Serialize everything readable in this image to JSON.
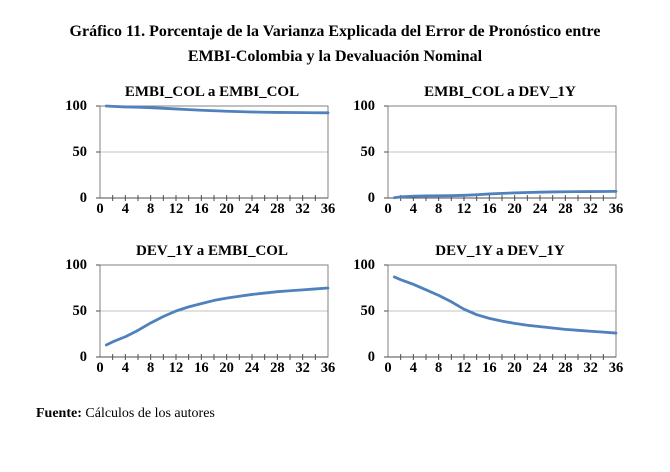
{
  "header": {
    "title_line1": "Gráfico 11. Porcentaje de la Varianza Explicada del Error de Pronóstico entre",
    "title_line2": "EMBI-Colombia y la Devaluación Nominal"
  },
  "footer": {
    "source_label": "Fuente:",
    "source_text": " Cálculos de los autores"
  },
  "colors": {
    "line": "#4f81bd",
    "plot_border": "#808080",
    "gridline": "#c3c3c3",
    "axis": "#4d4d4d",
    "text": "#000000"
  },
  "axes": {
    "x_range": [
      0,
      36
    ],
    "y_range": [
      0,
      100
    ],
    "x_ticks": [
      0,
      4,
      8,
      12,
      16,
      20,
      24,
      28,
      32,
      36
    ],
    "y_ticks": [
      100,
      50,
      0
    ],
    "x_minor_step": 2,
    "grid": "horizontal-only",
    "legend": "none"
  },
  "chart_data": [
    {
      "type": "line",
      "title": "EMBI_COL a EMBI_COL",
      "xlabel": "",
      "ylabel": "",
      "xlim": [
        0,
        36
      ],
      "ylim": [
        0,
        100
      ],
      "x": [
        1,
        2,
        4,
        6,
        8,
        10,
        12,
        14,
        16,
        18,
        20,
        22,
        24,
        26,
        28,
        30,
        32,
        34,
        36
      ],
      "values": [
        100,
        99.6,
        99.0,
        98.6,
        98.1,
        97.5,
        96.8,
        96.1,
        95.4,
        94.8,
        94.3,
        93.9,
        93.5,
        93.2,
        93.0,
        92.9,
        92.8,
        92.7,
        92.6
      ]
    },
    {
      "type": "line",
      "title": "EMBI_COL a DEV_1Y",
      "xlabel": "",
      "ylabel": "",
      "xlim": [
        0,
        36
      ],
      "ylim": [
        0,
        100
      ],
      "x": [
        1,
        2,
        4,
        6,
        8,
        10,
        12,
        14,
        16,
        18,
        20,
        22,
        24,
        26,
        28,
        30,
        32,
        34,
        36
      ],
      "values": [
        0.3,
        1.2,
        2.0,
        2.3,
        2.4,
        2.5,
        2.9,
        3.5,
        4.4,
        5.0,
        5.6,
        6.0,
        6.3,
        6.6,
        6.8,
        6.9,
        7.0,
        7.1,
        7.2
      ]
    },
    {
      "type": "line",
      "title": "DEV_1Y a EMBI_COL",
      "xlabel": "",
      "ylabel": "",
      "xlim": [
        0,
        36
      ],
      "ylim": [
        0,
        100
      ],
      "x": [
        1,
        2,
        4,
        6,
        8,
        10,
        12,
        14,
        16,
        18,
        20,
        22,
        24,
        26,
        28,
        30,
        32,
        34,
        36
      ],
      "values": [
        13,
        16.5,
        22,
        29,
        37,
        44,
        50,
        54.5,
        58,
        61.5,
        64,
        66,
        68,
        69.5,
        71,
        72,
        73,
        74,
        75
      ]
    },
    {
      "type": "line",
      "title": "DEV_1Y a DEV_1Y",
      "xlabel": "",
      "ylabel": "",
      "xlim": [
        0,
        36
      ],
      "ylim": [
        0,
        100
      ],
      "x": [
        1,
        2,
        4,
        6,
        8,
        10,
        12,
        14,
        16,
        18,
        20,
        22,
        24,
        26,
        28,
        30,
        32,
        34,
        36
      ],
      "values": [
        87,
        84,
        79,
        73,
        67,
        60,
        52,
        46,
        42,
        39,
        36.5,
        34.5,
        33,
        31.5,
        30,
        29,
        28,
        27,
        26
      ]
    }
  ]
}
